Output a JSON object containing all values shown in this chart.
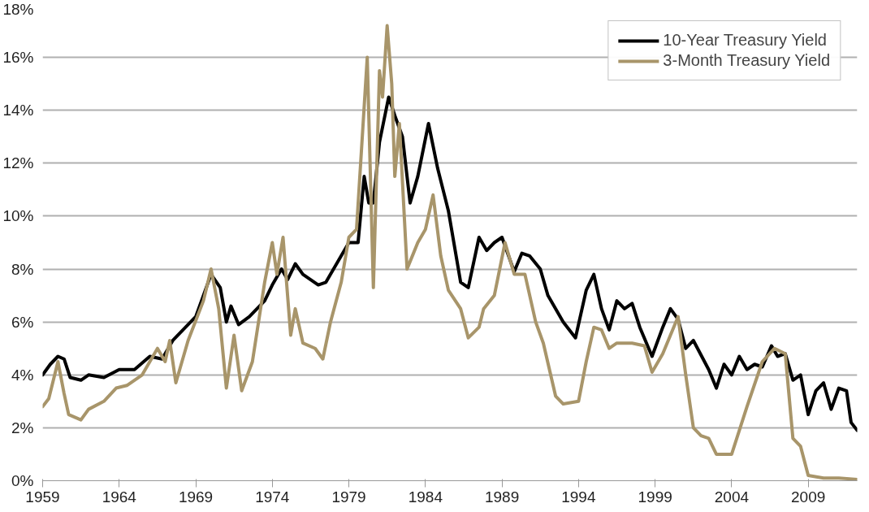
{
  "chart_data": {
    "type": "line",
    "xlim": [
      1959,
      2012.2
    ],
    "xticks": [
      1959,
      1964,
      1969,
      1974,
      1979,
      1984,
      1989,
      1994,
      1999,
      2004,
      2009
    ],
    "ylim": [
      0,
      18
    ],
    "yticks": [
      {
        "value": 0,
        "label": "0%"
      },
      {
        "value": 2,
        "label": "2%"
      },
      {
        "value": 4,
        "label": "4%"
      },
      {
        "value": 6,
        "label": "6%"
      },
      {
        "value": 8,
        "label": "8%"
      },
      {
        "value": 10,
        "label": "10%"
      },
      {
        "value": 12,
        "label": "12%"
      },
      {
        "value": 14,
        "label": "14%"
      },
      {
        "value": 16,
        "label": "16%"
      },
      {
        "value": 18,
        "label": "18%"
      }
    ],
    "grid": "y",
    "legend": "top right",
    "line_style": "solid",
    "marker": "none",
    "series": [
      {
        "name": "10-Year Treasury Yield",
        "color": "#000000",
        "x": [
          1959.0,
          1959.5,
          1960.0,
          1960.4,
          1960.8,
          1961.5,
          1962,
          1963,
          1964,
          1965,
          1966,
          1966.8,
          1967.5,
          1968,
          1969,
          1970,
          1970.6,
          1971,
          1971.3,
          1971.8,
          1972.5,
          1973.5,
          1974,
          1974.6,
          1975,
          1975.5,
          1976,
          1977,
          1977.5,
          1978.5,
          1979,
          1979.6,
          1980,
          1980.3,
          1980.6,
          1981,
          1981.6,
          1982,
          1982.5,
          1983,
          1983.5,
          1984.2,
          1984.8,
          1985.5,
          1986.3,
          1986.8,
          1987.5,
          1988,
          1988.5,
          1989,
          1989.8,
          1990.3,
          1990.8,
          1991.5,
          1992,
          1993,
          1993.8,
          1994.5,
          1995,
          1995.5,
          1996,
          1996.5,
          1997,
          1997.5,
          1998,
          1998.8,
          1999.5,
          2000,
          2000.5,
          2001,
          2001.5,
          2002.5,
          2003,
          2003.5,
          2004,
          2004.5,
          2005,
          2005.5,
          2006,
          2006.6,
          2007,
          2007.5,
          2008,
          2008.5,
          2009,
          2009.5,
          2010,
          2010.5,
          2011,
          2011.5,
          2011.8,
          2012.2
        ],
        "values": [
          4.0,
          4.4,
          4.7,
          4.6,
          3.9,
          3.8,
          4.0,
          3.9,
          4.2,
          4.2,
          4.7,
          4.6,
          5.3,
          5.6,
          6.2,
          7.8,
          7.3,
          6.0,
          6.6,
          5.9,
          6.2,
          6.8,
          7.4,
          8.0,
          7.6,
          8.2,
          7.8,
          7.4,
          7.5,
          8.5,
          9.0,
          9.0,
          11.5,
          10.5,
          10.5,
          12.8,
          14.5,
          13.8,
          13.0,
          10.5,
          11.5,
          13.5,
          11.8,
          10.2,
          7.5,
          7.3,
          9.2,
          8.7,
          9.0,
          9.2,
          7.9,
          8.6,
          8.5,
          8.0,
          7.0,
          6.0,
          5.4,
          7.2,
          7.8,
          6.5,
          5.7,
          6.8,
          6.5,
          6.7,
          5.8,
          4.7,
          5.8,
          6.5,
          6.1,
          5.0,
          5.3,
          4.2,
          3.5,
          4.4,
          4.0,
          4.7,
          4.2,
          4.4,
          4.3,
          5.1,
          4.7,
          4.8,
          3.8,
          4.0,
          2.5,
          3.4,
          3.7,
          2.7,
          3.5,
          3.4,
          2.2,
          1.9
        ]
      },
      {
        "name": "3-Month Treasury Yield",
        "color": "#a8956a",
        "x": [
          1959.0,
          1959.4,
          1960.0,
          1960.4,
          1960.7,
          1961.5,
          1962,
          1963,
          1963.8,
          1964.5,
          1965.5,
          1966.5,
          1967,
          1967.3,
          1967.7,
          1968.5,
          1969.5,
          1970,
          1970.5,
          1971,
          1971.5,
          1972,
          1972.7,
          1973.5,
          1974,
          1974.3,
          1974.7,
          1975.2,
          1975.5,
          1976,
          1976.8,
          1977.3,
          1977.8,
          1978.5,
          1979,
          1979.5,
          1980.2,
          1980.6,
          1981,
          1981.2,
          1981.5,
          1981.8,
          1982,
          1982.3,
          1982.8,
          1983.5,
          1984,
          1984.5,
          1985,
          1985.5,
          1986.3,
          1986.8,
          1987.5,
          1987.8,
          1988.5,
          1989.2,
          1989.8,
          1990.5,
          1991.2,
          1991.7,
          1992.5,
          1993,
          1994,
          1994.5,
          1995,
          1995.5,
          1996,
          1996.5,
          1997.5,
          1998.3,
          1998.8,
          1999.5,
          2000.5,
          2001,
          2001.5,
          2002,
          2002.5,
          2003,
          2004,
          2005,
          2006,
          2006.8,
          2007.5,
          2008,
          2008.5,
          2009,
          2010,
          2011,
          2012.2
        ],
        "values": [
          2.8,
          3.1,
          4.5,
          3.3,
          2.5,
          2.3,
          2.7,
          3.0,
          3.5,
          3.6,
          4.0,
          5.0,
          4.5,
          5.3,
          3.7,
          5.3,
          6.8,
          8.0,
          6.5,
          3.5,
          5.5,
          3.4,
          4.5,
          7.5,
          9.0,
          7.8,
          9.2,
          5.5,
          6.5,
          5.2,
          5.0,
          4.6,
          6.0,
          7.5,
          9.2,
          9.5,
          16.0,
          7.3,
          15.5,
          14.5,
          17.2,
          15.0,
          11.5,
          13.5,
          8.0,
          9.0,
          9.5,
          10.8,
          8.5,
          7.2,
          6.5,
          5.4,
          5.8,
          6.5,
          7.0,
          9.0,
          7.8,
          7.8,
          6.0,
          5.2,
          3.2,
          2.9,
          3.0,
          4.5,
          5.8,
          5.7,
          5.0,
          5.2,
          5.2,
          5.1,
          4.1,
          4.8,
          6.2,
          4.0,
          2.0,
          1.7,
          1.6,
          1.0,
          1.0,
          2.8,
          4.5,
          5.0,
          4.8,
          1.6,
          1.3,
          0.2,
          0.1,
          0.1,
          0.05
        ]
      }
    ]
  }
}
